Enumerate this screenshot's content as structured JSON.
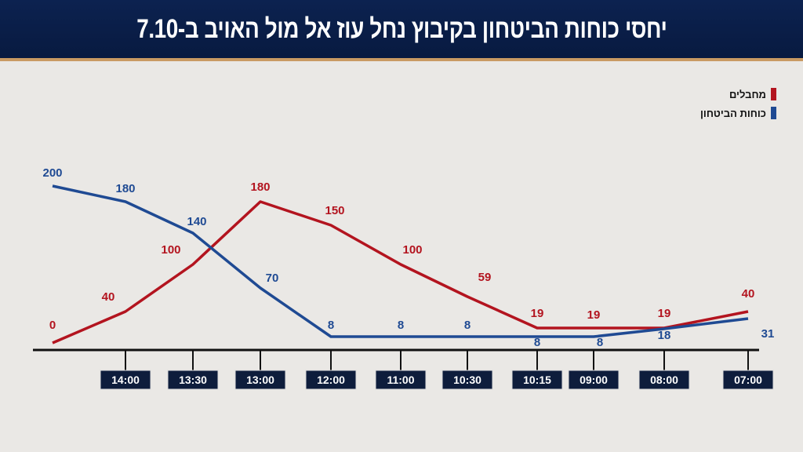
{
  "chart_data": {
    "type": "line",
    "title": "יחסי כוחות הביטחון בקיבוץ נחל עוז אל מול האויב ב-7.10",
    "categories": [
      "",
      "14:00",
      "13:30",
      "13:00",
      "12:00",
      "11:00",
      "10:30",
      "10:15",
      "09:00",
      "08:00",
      "07:00"
    ],
    "x_direction": "right-to-left",
    "series": [
      {
        "name": "מחבלים",
        "color": "#b3141f",
        "values": [
          0,
          40,
          100,
          180,
          150,
          100,
          59,
          19,
          19,
          19,
          40
        ]
      },
      {
        "name": "כוחות הביטחון",
        "color": "#1f4a93",
        "values": [
          200,
          180,
          140,
          70,
          8,
          8,
          8,
          8,
          8,
          18,
          31
        ]
      }
    ],
    "ylim": [
      0,
      200
    ],
    "grid": false,
    "legend": "top-right"
  }
}
